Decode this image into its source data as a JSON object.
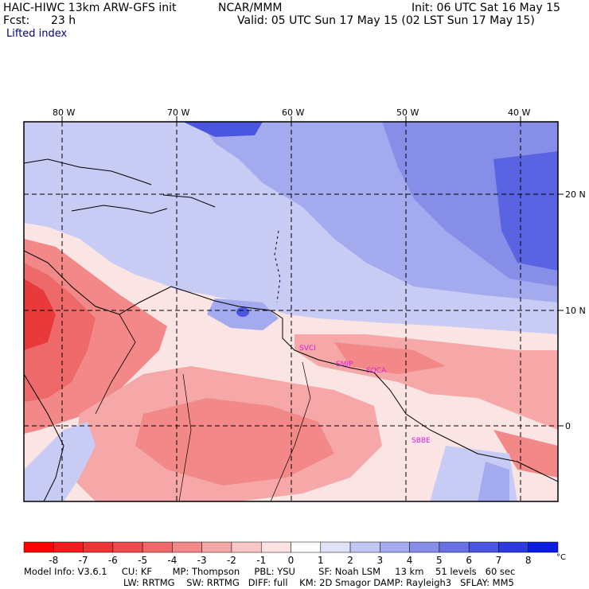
{
  "header": {
    "title_left": "HAIC-HIWC 13km ARW-GFS init",
    "title_center": "NCAR/MMM",
    "init": "Init: 06 UTC Sat 16 May 15",
    "fcst_label": "Fcst:",
    "fcst_value": "23 h",
    "valid": "Valid: 05 UTC Sun 17 May 15 (02 LST Sun 17 May 15)",
    "field": "Lifted index"
  },
  "map": {
    "lon_labels": [
      "80 W",
      "70 W",
      "60 W",
      "50 W",
      "40 W"
    ],
    "lat_labels": [
      "20 N",
      "10 N",
      "0"
    ],
    "stations": [
      "SVCI",
      "SMJP",
      "SOCA",
      "SBBE"
    ],
    "colors": {
      "strong_neg": "#e83a3a",
      "mid_neg": "#f07878",
      "weak_neg": "#f7b8b8",
      "neutral": "#fbe4e4",
      "weak_pos": "#c8ccf4",
      "mid_pos": "#8c96ee",
      "strong_pos": "#4450e6"
    }
  },
  "colorbar": {
    "ticks": [
      "-8",
      "-7",
      "-6",
      "-5",
      "-4",
      "-3",
      "-2",
      "-1",
      "0",
      "1",
      "2",
      "3",
      "4",
      "5",
      "6",
      "7",
      "8"
    ],
    "unit": "°C",
    "colors": [
      "#ff0000",
      "#f21c1c",
      "#ee3434",
      "#ec4c4c",
      "#ee6a6a",
      "#f28888",
      "#f6a8a8",
      "#fac6c6",
      "#fde2e2",
      "#ffffff",
      "#e0e2fa",
      "#c2c6f4",
      "#a4aaee",
      "#868ee8",
      "#6872e4",
      "#4a56e0",
      "#2c3ade",
      "#0a1ce0"
    ]
  },
  "model_info": {
    "line1": "Model Info: V3.6.1     CU: KF       MP: Thompson     PBL: YSU        SF: Noah LSM     13 km    51 levels   60 sec",
    "line2": "LW: RRTMG    SW: RRTMG   DIFF: full    KM: 2D Smagor DAMP: Rayleigh3   SFLAY: MM5"
  }
}
